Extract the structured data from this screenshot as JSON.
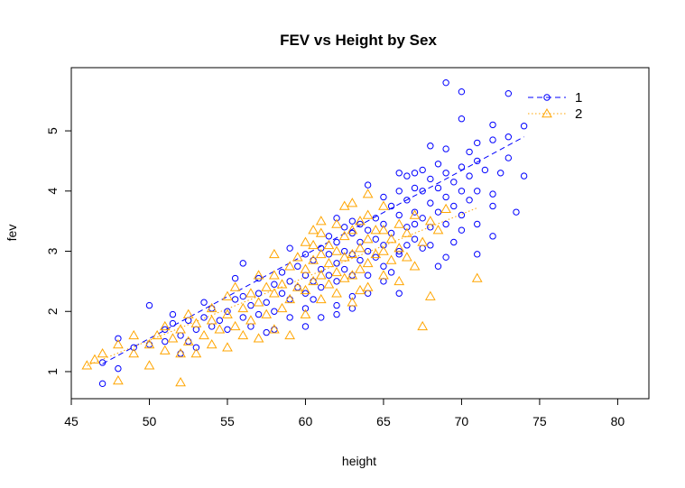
{
  "chart_data": {
    "type": "scatter",
    "title": "FEV vs Height by Sex",
    "xlabel": "height",
    "ylabel": "fev",
    "xlim": [
      45,
      82
    ],
    "ylim": [
      0.55,
      6.05
    ],
    "x_ticks": [
      45,
      50,
      55,
      60,
      65,
      70,
      75,
      80
    ],
    "y_ticks": [
      1,
      2,
      3,
      4,
      5
    ],
    "grid": false,
    "legend_position": "top-right",
    "series": [
      {
        "name": "1",
        "marker": "circle",
        "color": "#0000ff",
        "line_style": "dashed",
        "trend": [
          [
            47,
            1.13
          ],
          [
            74,
            4.9
          ]
        ],
        "points": [
          [
            47,
            0.8
          ],
          [
            47,
            1.15
          ],
          [
            48,
            1.05
          ],
          [
            48,
            1.55
          ],
          [
            49,
            1.4
          ],
          [
            50,
            1.45
          ],
          [
            50,
            2.1
          ],
          [
            51,
            1.5
          ],
          [
            51,
            1.7
          ],
          [
            51.5,
            1.8
          ],
          [
            51.5,
            1.95
          ],
          [
            52,
            1.6
          ],
          [
            52,
            1.3
          ],
          [
            52.5,
            1.85
          ],
          [
            52.5,
            1.5
          ],
          [
            53,
            1.7
          ],
          [
            53,
            1.4
          ],
          [
            53.5,
            1.9
          ],
          [
            53.5,
            2.15
          ],
          [
            54,
            1.75
          ],
          [
            54,
            2.05
          ],
          [
            54.5,
            1.85
          ],
          [
            55,
            2.0
          ],
          [
            55,
            1.7
          ],
          [
            55.5,
            2.2
          ],
          [
            55.5,
            2.55
          ],
          [
            56,
            1.9
          ],
          [
            56,
            2.25
          ],
          [
            56.5,
            2.1
          ],
          [
            56.5,
            1.75
          ],
          [
            57,
            2.3
          ],
          [
            57,
            1.95
          ],
          [
            57,
            2.55
          ],
          [
            57.5,
            2.15
          ],
          [
            57.5,
            1.65
          ],
          [
            58,
            2.45
          ],
          [
            58,
            2.0
          ],
          [
            58,
            1.7
          ],
          [
            58.5,
            2.3
          ],
          [
            58.5,
            2.65
          ],
          [
            59,
            2.2
          ],
          [
            59,
            2.5
          ],
          [
            59,
            1.9
          ],
          [
            59.5,
            2.4
          ],
          [
            59.5,
            2.75
          ],
          [
            60,
            2.3
          ],
          [
            60,
            2.6
          ],
          [
            60,
            2.95
          ],
          [
            60,
            2.05
          ],
          [
            60,
            1.75
          ],
          [
            60.5,
            2.5
          ],
          [
            60.5,
            2.85
          ],
          [
            60.5,
            2.2
          ],
          [
            61,
            2.4
          ],
          [
            61,
            2.7
          ],
          [
            61,
            3.05
          ],
          [
            61,
            1.9
          ],
          [
            61.5,
            2.6
          ],
          [
            61.5,
            2.95
          ],
          [
            61.5,
            3.25
          ],
          [
            62,
            2.5
          ],
          [
            62,
            2.8
          ],
          [
            62,
            3.15
          ],
          [
            62,
            3.55
          ],
          [
            62,
            2.1
          ],
          [
            62,
            1.95
          ],
          [
            62.5,
            2.7
          ],
          [
            62.5,
            3.0
          ],
          [
            62.5,
            3.4
          ],
          [
            63,
            2.6
          ],
          [
            63,
            2.95
          ],
          [
            63,
            3.3
          ],
          [
            63,
            3.5
          ],
          [
            63,
            2.25
          ],
          [
            63,
            2.05
          ],
          [
            63.5,
            2.85
          ],
          [
            63.5,
            3.15
          ],
          [
            63.5,
            3.45
          ],
          [
            64,
            2.6
          ],
          [
            64,
            3.0
          ],
          [
            64,
            3.35
          ],
          [
            64,
            4.1
          ],
          [
            64,
            2.3
          ],
          [
            64.5,
            2.9
          ],
          [
            64.5,
            3.2
          ],
          [
            64.5,
            3.55
          ],
          [
            65,
            2.75
          ],
          [
            65,
            3.1
          ],
          [
            65,
            3.45
          ],
          [
            65,
            3.9
          ],
          [
            65,
            2.5
          ],
          [
            65.5,
            3.3
          ],
          [
            65.5,
            3.75
          ],
          [
            65.5,
            2.65
          ],
          [
            66,
            3.0
          ],
          [
            66,
            3.6
          ],
          [
            66,
            4.0
          ],
          [
            66,
            4.3
          ],
          [
            66,
            2.95
          ],
          [
            66.5,
            3.4
          ],
          [
            66.5,
            3.85
          ],
          [
            66.5,
            4.25
          ],
          [
            66.5,
            3.1
          ],
          [
            67,
            3.2
          ],
          [
            67,
            3.65
          ],
          [
            67,
            4.05
          ],
          [
            67,
            4.3
          ],
          [
            67,
            3.45
          ],
          [
            67.5,
            3.55
          ],
          [
            67.5,
            4.0
          ],
          [
            67.5,
            4.35
          ],
          [
            67.5,
            3.05
          ],
          [
            68,
            3.4
          ],
          [
            68,
            3.8
          ],
          [
            68,
            4.2
          ],
          [
            68,
            4.75
          ],
          [
            68,
            3.1
          ],
          [
            68.5,
            3.65
          ],
          [
            68.5,
            4.05
          ],
          [
            68.5,
            4.45
          ],
          [
            68.5,
            2.75
          ],
          [
            69,
            3.45
          ],
          [
            69,
            3.9
          ],
          [
            69,
            4.3
          ],
          [
            69,
            4.7
          ],
          [
            69,
            5.8
          ],
          [
            69,
            2.9
          ],
          [
            69.5,
            3.75
          ],
          [
            69.5,
            4.15
          ],
          [
            69.5,
            3.15
          ],
          [
            70,
            3.6
          ],
          [
            70,
            4.0
          ],
          [
            70,
            4.4
          ],
          [
            70,
            5.2
          ],
          [
            70,
            5.65
          ],
          [
            70,
            3.35
          ],
          [
            70.5,
            3.85
          ],
          [
            70.5,
            4.25
          ],
          [
            70.5,
            4.65
          ],
          [
            71,
            4.0
          ],
          [
            71,
            4.5
          ],
          [
            71,
            4.8
          ],
          [
            71,
            3.45
          ],
          [
            71.5,
            4.35
          ],
          [
            72,
            3.75
          ],
          [
            72,
            3.95
          ],
          [
            72,
            4.85
          ],
          [
            72,
            5.1
          ],
          [
            72,
            3.25
          ],
          [
            72.5,
            4.3
          ],
          [
            73,
            4.55
          ],
          [
            73,
            4.9
          ],
          [
            73,
            5.62
          ],
          [
            73.5,
            3.65
          ],
          [
            74,
            4.25
          ],
          [
            74,
            5.08
          ],
          [
            71,
            2.95
          ],
          [
            66,
            2.3
          ],
          [
            56,
            2.8
          ],
          [
            59,
            3.05
          ]
        ]
      },
      {
        "name": "2",
        "marker": "triangle",
        "color": "#ffa500",
        "line_style": "dotted",
        "trend": [
          [
            46,
            1.1
          ],
          [
            71,
            3.72
          ]
        ],
        "points": [
          [
            46,
            1.1
          ],
          [
            46.5,
            1.2
          ],
          [
            47,
            1.3
          ],
          [
            48,
            0.85
          ],
          [
            48,
            1.45
          ],
          [
            49,
            1.3
          ],
          [
            49,
            1.6
          ],
          [
            50,
            1.1
          ],
          [
            50,
            1.45
          ],
          [
            50.5,
            1.6
          ],
          [
            51,
            1.35
          ],
          [
            51,
            1.75
          ],
          [
            51.5,
            1.55
          ],
          [
            52,
            0.82
          ],
          [
            52,
            1.3
          ],
          [
            52,
            1.7
          ],
          [
            52.5,
            1.5
          ],
          [
            52.5,
            1.95
          ],
          [
            53,
            1.3
          ],
          [
            53,
            1.8
          ],
          [
            53.5,
            1.6
          ],
          [
            54,
            1.45
          ],
          [
            54,
            1.85
          ],
          [
            54.5,
            1.7
          ],
          [
            55,
            1.4
          ],
          [
            55,
            1.95
          ],
          [
            55,
            2.25
          ],
          [
            55.5,
            1.75
          ],
          [
            55.5,
            2.4
          ],
          [
            56,
            1.6
          ],
          [
            56,
            2.05
          ],
          [
            56.5,
            1.85
          ],
          [
            56.5,
            2.3
          ],
          [
            57,
            1.55
          ],
          [
            57,
            2.15
          ],
          [
            57,
            2.6
          ],
          [
            57.5,
            1.95
          ],
          [
            58,
            1.7
          ],
          [
            58,
            2.3
          ],
          [
            58,
            2.6
          ],
          [
            58.5,
            2.05
          ],
          [
            58.5,
            2.45
          ],
          [
            59,
            1.6
          ],
          [
            59,
            2.2
          ],
          [
            59,
            2.75
          ],
          [
            59.5,
            2.4
          ],
          [
            59.5,
            2.9
          ],
          [
            60,
            1.95
          ],
          [
            60,
            2.35
          ],
          [
            60,
            2.7
          ],
          [
            60,
            3.15
          ],
          [
            60.5,
            2.5
          ],
          [
            60.5,
            2.85
          ],
          [
            60.5,
            3.1
          ],
          [
            61,
            2.2
          ],
          [
            61,
            2.6
          ],
          [
            61,
            2.95
          ],
          [
            61,
            3.3
          ],
          [
            61.5,
            2.45
          ],
          [
            61.5,
            2.8
          ],
          [
            61.5,
            3.1
          ],
          [
            62,
            2.3
          ],
          [
            62,
            2.65
          ],
          [
            62,
            3.0
          ],
          [
            62,
            3.45
          ],
          [
            62.5,
            2.55
          ],
          [
            62.5,
            2.9
          ],
          [
            62.5,
            3.25
          ],
          [
            63,
            2.15
          ],
          [
            63,
            2.6
          ],
          [
            63,
            2.95
          ],
          [
            63,
            3.35
          ],
          [
            63,
            3.8
          ],
          [
            63.5,
            2.7
          ],
          [
            63.5,
            3.05
          ],
          [
            63.5,
            3.5
          ],
          [
            64,
            2.4
          ],
          [
            64,
            2.8
          ],
          [
            64,
            3.2
          ],
          [
            64,
            3.6
          ],
          [
            64.5,
            2.95
          ],
          [
            64.5,
            3.35
          ],
          [
            65,
            2.6
          ],
          [
            65,
            3.0
          ],
          [
            65,
            3.35
          ],
          [
            65,
            3.75
          ],
          [
            65.5,
            2.85
          ],
          [
            65.5,
            3.2
          ],
          [
            66,
            2.5
          ],
          [
            66,
            3.05
          ],
          [
            66,
            3.45
          ],
          [
            66.5,
            2.9
          ],
          [
            66.5,
            3.3
          ],
          [
            67,
            2.75
          ],
          [
            67,
            3.6
          ],
          [
            67.5,
            1.75
          ],
          [
            67.5,
            3.15
          ],
          [
            68,
            2.25
          ],
          [
            68,
            3.5
          ],
          [
            68.5,
            3.35
          ],
          [
            69,
            3.7
          ],
          [
            71,
            2.55
          ],
          [
            62.5,
            3.75
          ],
          [
            58,
            2.95
          ],
          [
            54,
            2.05
          ],
          [
            60.5,
            3.35
          ],
          [
            57.5,
            2.4
          ],
          [
            64,
            3.95
          ],
          [
            63.5,
            2.35
          ],
          [
            61,
            3.5
          ]
        ]
      }
    ]
  }
}
